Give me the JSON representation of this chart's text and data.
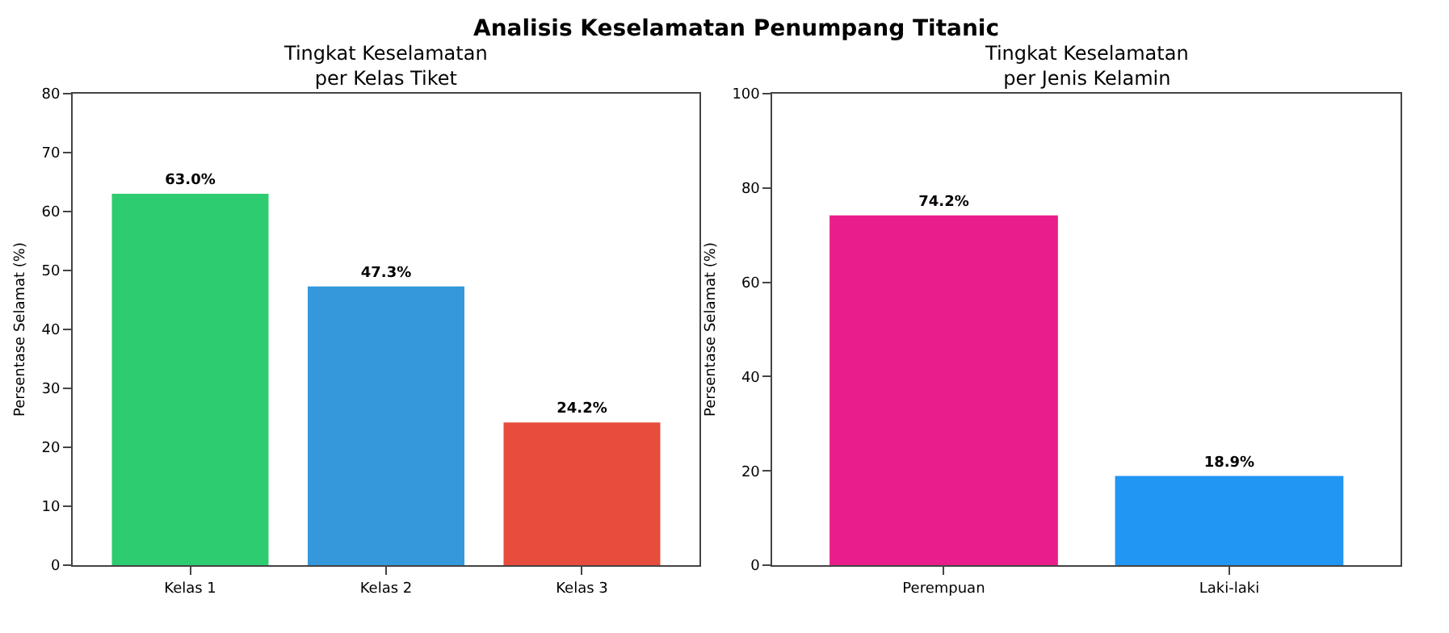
{
  "chart_data": [
    {
      "type": "bar",
      "title": "Tingkat Keselamatan\nper Kelas Tiket",
      "annotations": [
        "Analisis Keselamatan Penumpang Titanic"
      ],
      "ylabel": "Persentase Selamat (%)",
      "categories": [
        "Kelas 1",
        "Kelas 2",
        "Kelas 3"
      ],
      "values": [
        63.0,
        47.3,
        24.2
      ],
      "colors": [
        "#2ecc71",
        "#3498db",
        "#e74c3c"
      ],
      "value_labels": [
        "63.0%",
        "47.3%",
        "24.2%"
      ],
      "ylim": [
        0,
        80
      ],
      "yticks": [
        0,
        10,
        20,
        30,
        40,
        50,
        60,
        70,
        80
      ]
    },
    {
      "type": "bar",
      "title": "Tingkat Keselamatan\nper Jenis Kelamin",
      "ylabel": "Persentase Selamat (%)",
      "categories": [
        "Perempuan",
        "Laki-laki"
      ],
      "values": [
        74.2,
        18.9
      ],
      "colors": [
        "#e91e8c",
        "#2196f3"
      ],
      "value_labels": [
        "74.2%",
        "18.9%"
      ],
      "ylim": [
        0,
        100
      ],
      "yticks": [
        0,
        20,
        40,
        60,
        80,
        100
      ]
    }
  ]
}
